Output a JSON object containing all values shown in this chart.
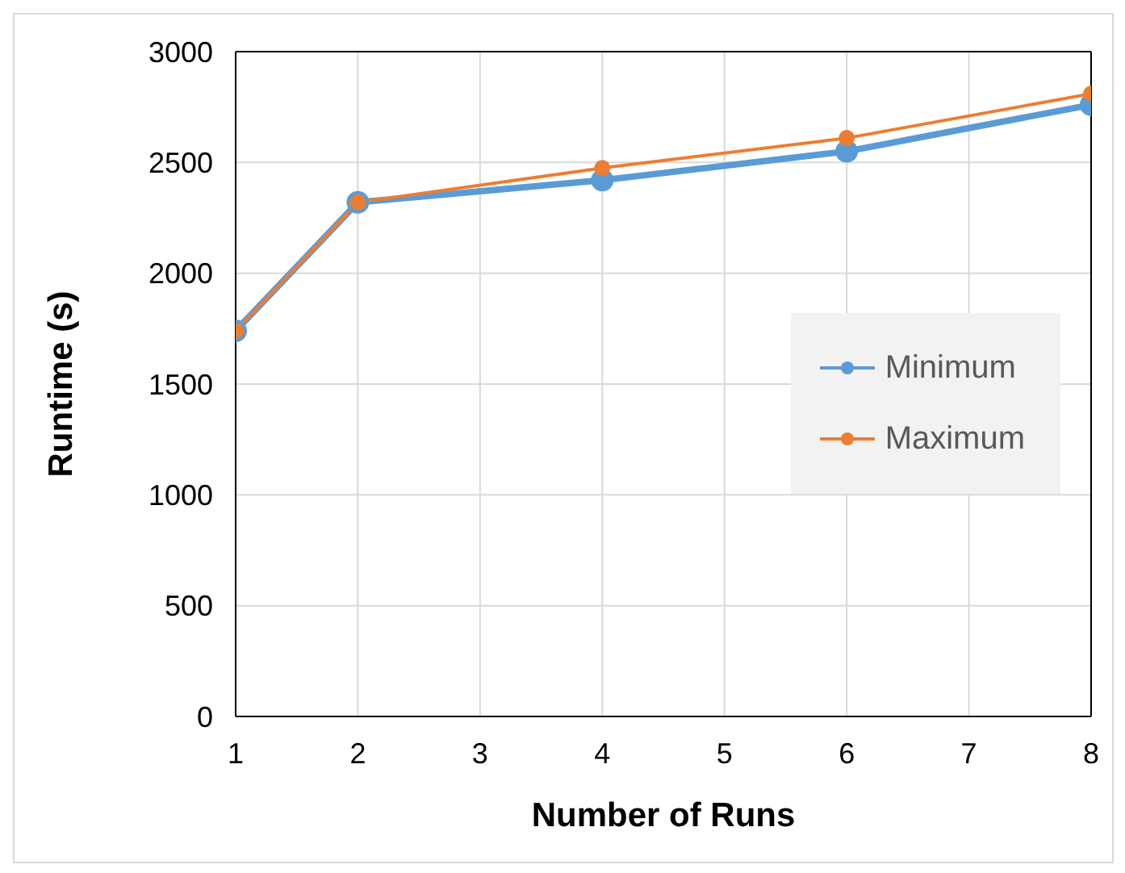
{
  "chart_data": {
    "type": "line",
    "xlabel": "Number of Runs",
    "ylabel": "Runtime (s)",
    "x": [
      1,
      2,
      4,
      6,
      8
    ],
    "series": [
      {
        "name": "Minimum",
        "color": "#5b9bd5",
        "values": [
          1740,
          2320,
          2420,
          2550,
          2760
        ]
      },
      {
        "name": "Maximum",
        "color": "#ed7d31",
        "values": [
          1740,
          2320,
          2475,
          2610,
          2810
        ]
      }
    ],
    "xlim": [
      1,
      8
    ],
    "xticks": [
      1,
      2,
      3,
      4,
      5,
      6,
      7,
      8
    ],
    "ylim": [
      0,
      3000
    ],
    "yticks": [
      0,
      500,
      1000,
      1500,
      2000,
      2500,
      3000
    ],
    "grid": true,
    "legend": "right",
    "marker": "circle",
    "line_style": "solid"
  }
}
